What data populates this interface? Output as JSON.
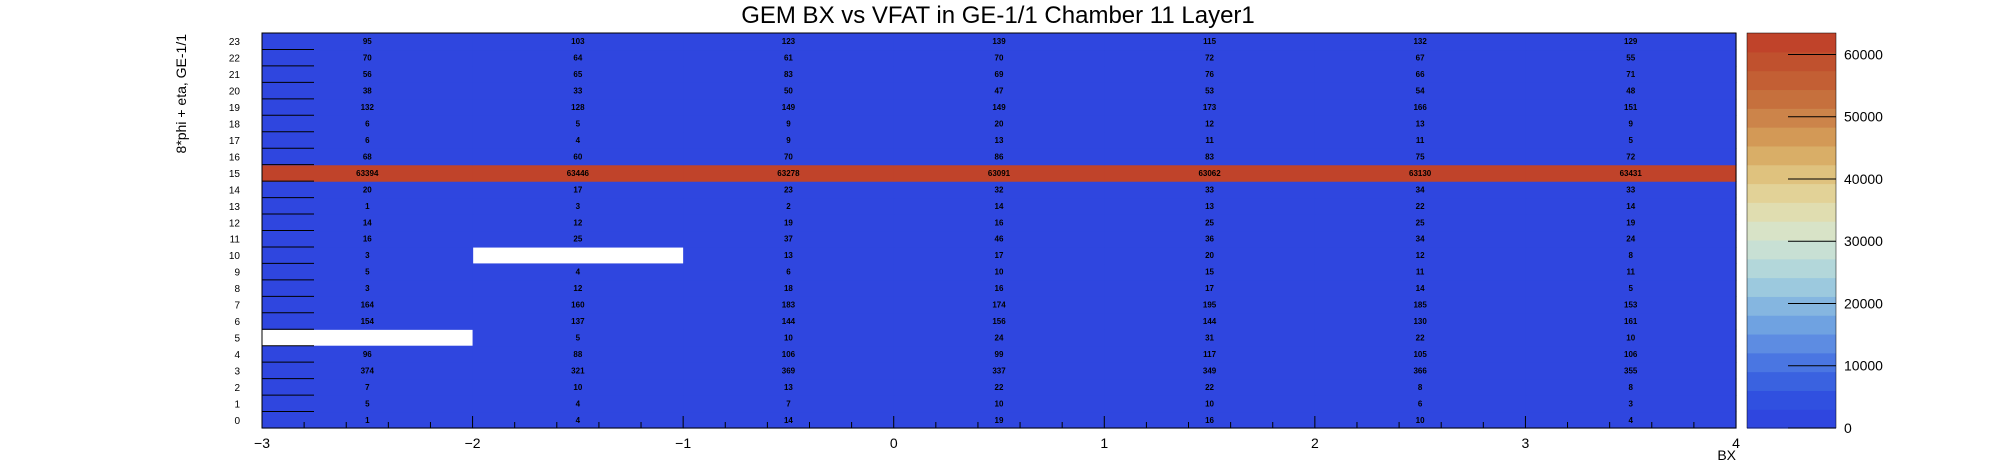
{
  "chart_data": {
    "type": "heatmap",
    "title": "GEM BX vs VFAT in GE-1/1 Chamber 11 Layer1",
    "xlabel": "BX",
    "ylabel": "8*phi + eta, GE-1/1",
    "xlim": [
      -3,
      4
    ],
    "ylim": [
      0,
      24
    ],
    "x_ticks": [
      "−3",
      "−2",
      "−1",
      "0",
      "1",
      "2",
      "3",
      "4"
    ],
    "y_ticks": [
      "0",
      "1",
      "2",
      "3",
      "4",
      "5",
      "6",
      "7",
      "8",
      "9",
      "10",
      "11",
      "12",
      "13",
      "14",
      "15",
      "16",
      "17",
      "18",
      "19",
      "20",
      "21",
      "22",
      "23"
    ],
    "x_bins": [
      -2.5,
      -1.5,
      -0.5,
      0.5,
      1.5,
      2.5,
      3.5
    ],
    "y_bins": [
      0,
      1,
      2,
      3,
      4,
      5,
      6,
      7,
      8,
      9,
      10,
      11,
      12,
      13,
      14,
      15,
      16,
      17,
      18,
      19,
      20,
      21,
      22,
      23
    ],
    "values": [
      [
        1,
        4,
        14,
        19,
        16,
        10,
        4
      ],
      [
        5,
        4,
        7,
        10,
        10,
        6,
        3
      ],
      [
        7,
        10,
        13,
        22,
        22,
        8,
        8
      ],
      [
        374,
        321,
        369,
        337,
        349,
        366,
        355
      ],
      [
        96,
        88,
        106,
        99,
        117,
        105,
        106
      ],
      [
        null,
        5,
        10,
        24,
        31,
        22,
        10
      ],
      [
        154,
        137,
        144,
        156,
        144,
        130,
        161
      ],
      [
        164,
        160,
        183,
        174,
        195,
        185,
        153
      ],
      [
        3,
        12,
        18,
        16,
        17,
        14,
        5
      ],
      [
        5,
        4,
        6,
        10,
        15,
        11,
        11
      ],
      [
        3,
        null,
        13,
        17,
        20,
        12,
        8
      ],
      [
        16,
        25,
        37,
        46,
        36,
        34,
        24
      ],
      [
        14,
        12,
        19,
        16,
        25,
        25,
        19
      ],
      [
        1,
        3,
        2,
        14,
        13,
        22,
        14
      ],
      [
        20,
        17,
        23,
        32,
        33,
        34,
        33
      ],
      [
        63394,
        63446,
        63278,
        63091,
        63062,
        63130,
        63431
      ],
      [
        68,
        60,
        70,
        86,
        83,
        75,
        72
      ],
      [
        6,
        4,
        9,
        13,
        11,
        11,
        5
      ],
      [
        6,
        5,
        9,
        20,
        12,
        13,
        9
      ],
      [
        132,
        128,
        149,
        149,
        173,
        166,
        151
      ],
      [
        38,
        33,
        50,
        47,
        53,
        54,
        48
      ],
      [
        56,
        65,
        83,
        69,
        76,
        66,
        71
      ],
      [
        70,
        64,
        61,
        70,
        72,
        67,
        55
      ],
      [
        95,
        103,
        123,
        139,
        115,
        132,
        129
      ]
    ],
    "zlim": [
      0,
      63446
    ],
    "colorbar_ticks": [
      "0",
      "10000",
      "20000",
      "30000",
      "40000",
      "50000",
      "60000"
    ],
    "colorbar_tick_values": [
      0,
      10000,
      20000,
      30000,
      40000,
      50000,
      60000
    ],
    "colors": {
      "low": "#2f46df",
      "high": "#c0432a",
      "palette": [
        "#2f46df",
        "#3050e0",
        "#3a62e0",
        "#4a76e2",
        "#5d8ce2",
        "#6fa2e1",
        "#85b6e0",
        "#9cc9de",
        "#b3d7da",
        "#c8e0d4",
        "#d8e3c7",
        "#e0ddb0",
        "#e2d297",
        "#dfc27e",
        "#d9ae67",
        "#d39956",
        "#cc844a",
        "#c6703d",
        "#c35f34",
        "#c0512e",
        "#c0432a"
      ]
    },
    "grid": false
  }
}
